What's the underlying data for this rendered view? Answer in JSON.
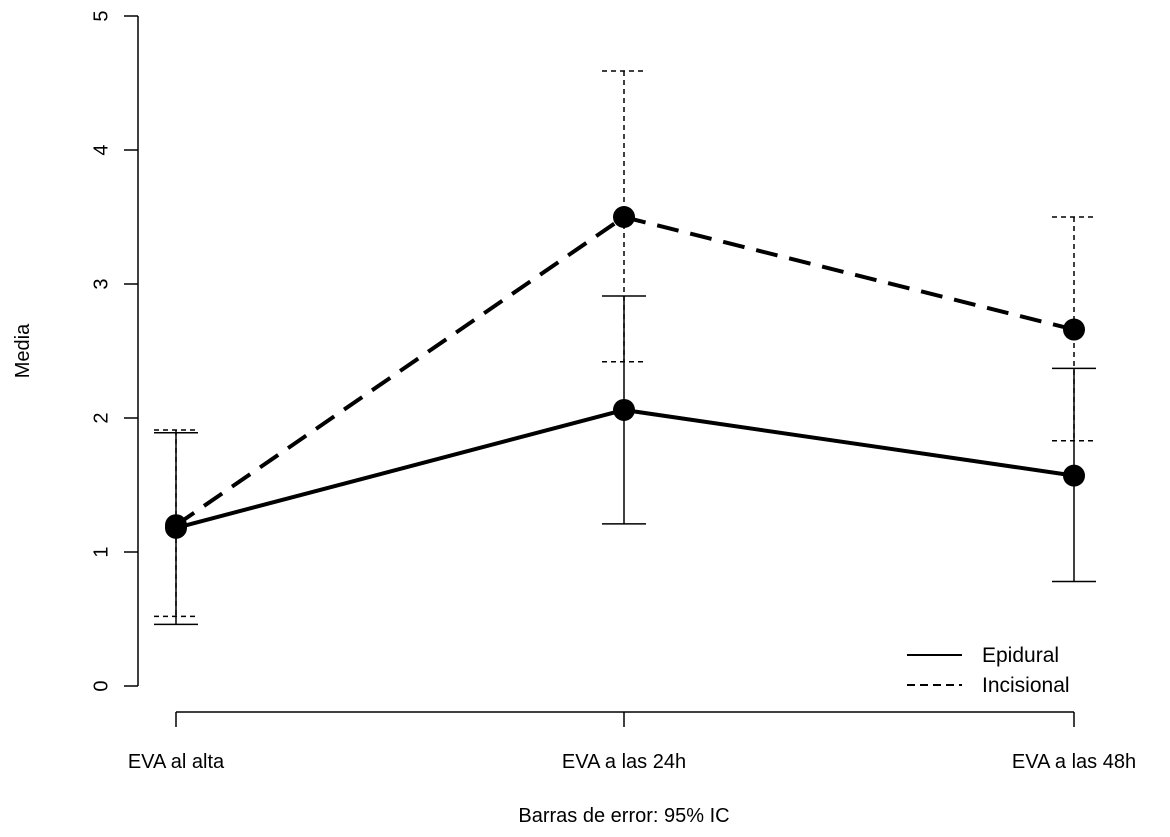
{
  "chart_data": {
    "type": "line",
    "title": "",
    "xlabel": "Barras de error: 95% IC",
    "ylabel": "Media",
    "categories": [
      "EVA al alta",
      "EVA a las 24h",
      "EVA a las 48h"
    ],
    "ylim": [
      0,
      5
    ],
    "yticks": [
      "0",
      "1",
      "2",
      "3",
      "4",
      "5"
    ],
    "grid": false,
    "legend_position": "bottom-right",
    "series": [
      {
        "name": "Epidural",
        "line_style": "solid",
        "color": "#000000",
        "values": [
          1.18,
          2.06,
          1.57
        ],
        "ci_lower": [
          0.46,
          1.21,
          0.78
        ],
        "ci_upper": [
          1.89,
          2.91,
          2.37
        ]
      },
      {
        "name": "Incisional",
        "line_style": "dashed",
        "color": "#000000",
        "values": [
          1.2,
          3.5,
          2.66
        ],
        "ci_lower": [
          0.52,
          2.42,
          1.83
        ],
        "ci_upper": [
          1.91,
          4.59,
          3.5
        ]
      }
    ]
  }
}
